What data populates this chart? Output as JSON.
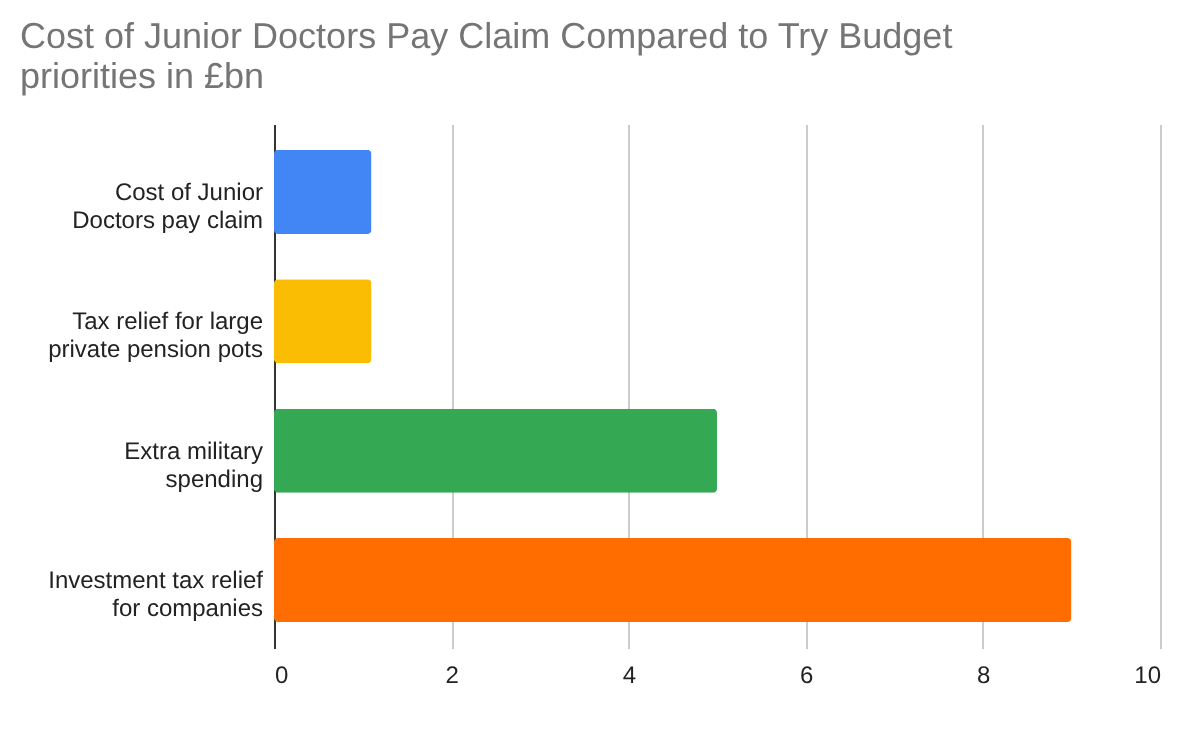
{
  "chart_data": {
    "type": "bar",
    "orientation": "horizontal",
    "title": "Cost of Junior Doctors Pay Claim Compared to Try Budget priorities in £bn",
    "categories": [
      "Cost of Junior Doctors pay claim",
      "Tax relief for large private pension pots",
      "Extra military spending",
      "Investment tax relief for companies"
    ],
    "values": [
      1.1,
      1.1,
      5,
      9
    ],
    "colors": [
      "#4285f4",
      "#fbbc04",
      "#34a853",
      "#ff6d01"
    ],
    "xlim": [
      0,
      10
    ],
    "xticks": [
      0,
      2,
      4,
      6,
      8,
      10
    ],
    "grid": "x"
  }
}
